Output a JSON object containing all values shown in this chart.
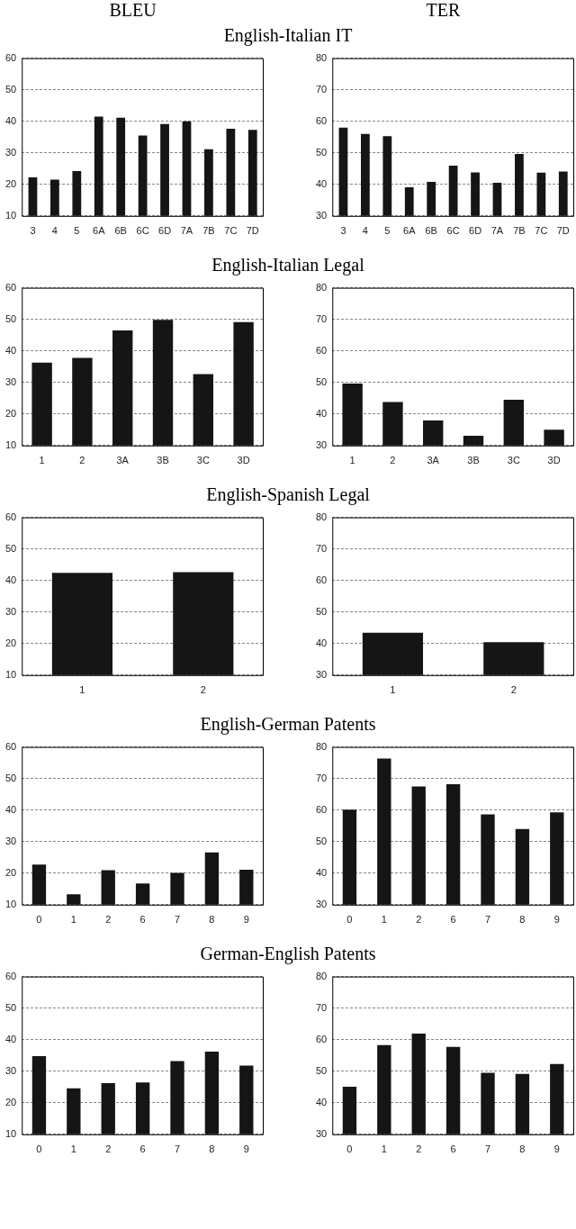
{
  "chart_data": [
    {
      "type": "bar",
      "subtitle": "BLEU",
      "title": "English-Italian IT",
      "categories": [
        "3",
        "4",
        "5",
        "6A",
        "6B",
        "6C",
        "6D",
        "7A",
        "7B",
        "7C",
        "7D"
      ],
      "values": [
        22.2,
        21.5,
        24.2,
        41.5,
        41.1,
        35.5,
        39.1,
        40,
        31.1,
        37.6,
        37.3
      ],
      "color": "#151515",
      "ylim": [
        10,
        60
      ],
      "yticks": [
        10,
        20,
        30,
        40,
        50,
        60
      ],
      "grid": "y"
    },
    {
      "type": "bar",
      "subtitle": "TER",
      "categories": [
        "3",
        "4",
        "5",
        "6A",
        "6B",
        "6C",
        "6D",
        "7A",
        "7B",
        "7C",
        "7D"
      ],
      "values": [
        58,
        56,
        55.3,
        39.1,
        40.8,
        45.9,
        43.8,
        40.5,
        49.6,
        43.7,
        44.1
      ],
      "color": "#151515",
      "ylim": [
        30,
        80
      ],
      "yticks": [
        30,
        40,
        50,
        60,
        70,
        80
      ],
      "grid": "y"
    },
    {
      "type": "bar",
      "title": "English-Italian Legal",
      "categories": [
        "1",
        "2",
        "3A",
        "3B",
        "3C",
        "3D"
      ],
      "values": [
        36.3,
        37.8,
        46.5,
        49.8,
        32.6,
        49.1
      ],
      "color": "#151515",
      "ylim": [
        10,
        60
      ],
      "yticks": [
        10,
        20,
        30,
        40,
        50,
        60
      ],
      "grid": "y"
    },
    {
      "type": "bar",
      "categories": [
        "1",
        "2",
        "3A",
        "3B",
        "3C",
        "3D"
      ],
      "values": [
        49.6,
        43.8,
        37.9,
        33.1,
        44.5,
        35
      ],
      "color": "#151515",
      "ylim": [
        30,
        80
      ],
      "yticks": [
        30,
        40,
        50,
        60,
        70,
        80
      ],
      "grid": "y"
    },
    {
      "type": "bar",
      "title": "English-Spanish Legal",
      "categories": [
        "1",
        "2"
      ],
      "values": [
        42.4,
        42.6
      ],
      "color": "#151515",
      "ylim": [
        10,
        60
      ],
      "yticks": [
        10,
        20,
        30,
        40,
        50,
        60
      ],
      "grid": "y"
    },
    {
      "type": "bar",
      "categories": [
        "1",
        "2"
      ],
      "values": [
        43.4,
        40.4
      ],
      "color": "#151515",
      "ylim": [
        30,
        80
      ],
      "yticks": [
        30,
        40,
        50,
        60,
        70,
        80
      ],
      "grid": "y"
    },
    {
      "type": "bar",
      "title": "English-German Patents",
      "categories": [
        "0",
        "1",
        "2",
        "6",
        "7",
        "8",
        "9"
      ],
      "values": [
        22.7,
        13.3,
        20.9,
        16.7,
        20.1,
        26.6,
        21.1
      ],
      "color": "#151515",
      "ylim": [
        10,
        60
      ],
      "yticks": [
        10,
        20,
        30,
        40,
        50,
        60
      ],
      "grid": "y"
    },
    {
      "type": "bar",
      "categories": [
        "0",
        "1",
        "2",
        "6",
        "7",
        "8",
        "9"
      ],
      "values": [
        60.1,
        76.3,
        67.5,
        68.2,
        58.6,
        54,
        59.3
      ],
      "color": "#151515",
      "ylim": [
        30,
        80
      ],
      "yticks": [
        30,
        40,
        50,
        60,
        70,
        80
      ],
      "grid": "y"
    },
    {
      "type": "bar",
      "title": "German-English Patents",
      "categories": [
        "0",
        "1",
        "2",
        "6",
        "7",
        "8",
        "9"
      ],
      "values": [
        34.8,
        24.6,
        26.2,
        26.4,
        33.2,
        36.2,
        31.8
      ],
      "color": "#151515",
      "ylim": [
        10,
        60
      ],
      "yticks": [
        10,
        20,
        30,
        40,
        50,
        60
      ],
      "grid": "y"
    },
    {
      "type": "bar",
      "categories": [
        "0",
        "1",
        "2",
        "6",
        "7",
        "8",
        "9"
      ],
      "values": [
        45.1,
        58.3,
        61.9,
        57.7,
        49.5,
        49.1,
        52.3
      ],
      "color": "#151515",
      "ylim": [
        30,
        80
      ],
      "yticks": [
        30,
        40,
        50,
        60,
        70,
        80
      ],
      "grid": "y"
    }
  ]
}
